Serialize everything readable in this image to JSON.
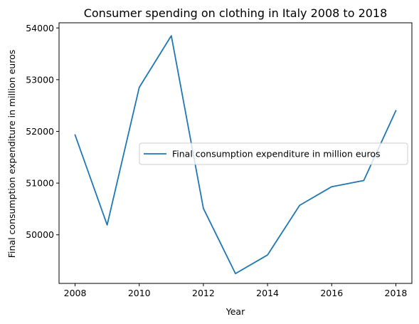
{
  "chart_data": {
    "type": "line",
    "title": "Consumer spending on clothing in Italy 2008 to 2018",
    "xlabel": "Year",
    "ylabel": "Final consumption expenditure in million euros",
    "x": [
      2008,
      2009,
      2010,
      2011,
      2012,
      2013,
      2014,
      2015,
      2016,
      2017,
      2018
    ],
    "series": [
      {
        "name": "Final consumption expenditure in million euros",
        "color": "#1f77b4",
        "values": [
          51930,
          50190,
          52850,
          53850,
          50510,
          49250,
          49610,
          50570,
          50930,
          51050,
          52400
        ]
      }
    ],
    "xlim": [
      2007.5,
      2018.5
    ],
    "ylim": [
      49060,
      54100
    ],
    "x_ticks": [
      2008,
      2010,
      2012,
      2014,
      2016,
      2018
    ],
    "y_ticks": [
      50000,
      51000,
      52000,
      53000,
      54000
    ],
    "x_tick_labels": [
      "2008",
      "2010",
      "2012",
      "2014",
      "2016",
      "2018"
    ],
    "y_tick_labels": [
      "50000",
      "51000",
      "52000",
      "53000",
      "54000"
    ],
    "grid": false,
    "legend_position": "center-right"
  }
}
